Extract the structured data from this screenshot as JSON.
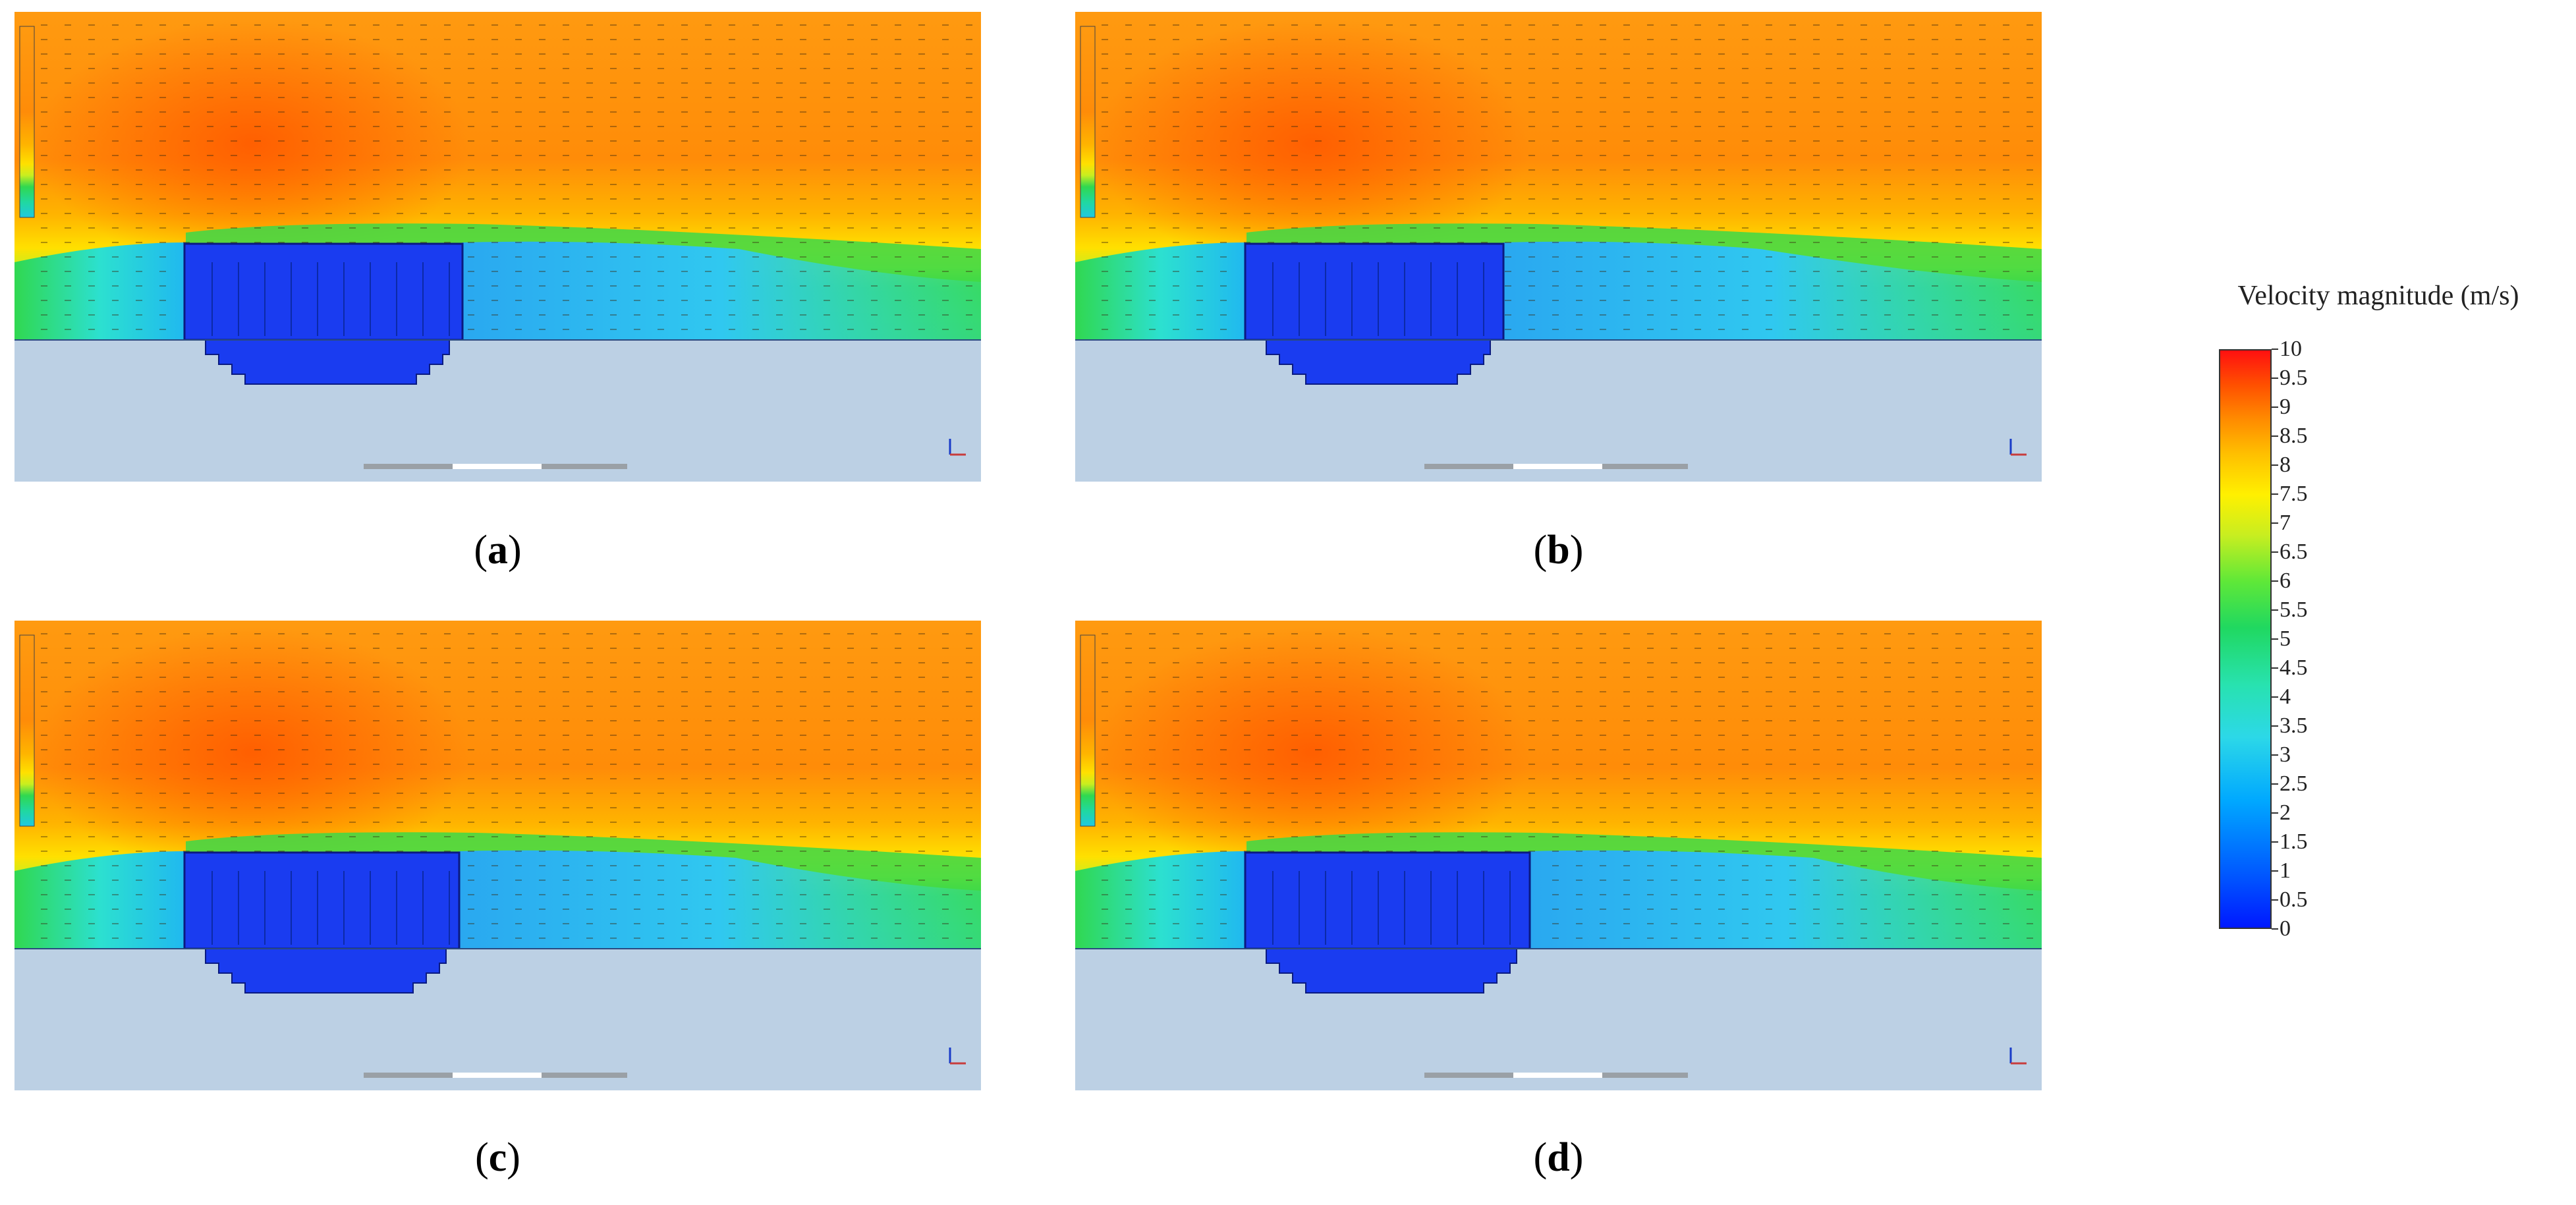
{
  "figure": {
    "panels": [
      {
        "id": "a",
        "label": "a"
      },
      {
        "id": "b",
        "label": "b"
      },
      {
        "id": "c",
        "label": "c"
      },
      {
        "id": "d",
        "label": "d"
      }
    ],
    "legend": {
      "title": "Velocity magnitude (m/s)",
      "ticks": [
        "10",
        "9.5",
        "9",
        "8.5",
        "8",
        "7.5",
        "7",
        "6.5",
        "6",
        "5.5",
        "5",
        "4.5",
        "4",
        "3.5",
        "3",
        "2.5",
        "2",
        "1.5",
        "1",
        "0.5",
        "0"
      ],
      "min": 0,
      "max": 10,
      "colors": [
        "#0018ff",
        "#00a8ff",
        "#2cd8e8",
        "#20d860",
        "#fff000",
        "#ff8c00",
        "#ff1010"
      ]
    }
  }
}
